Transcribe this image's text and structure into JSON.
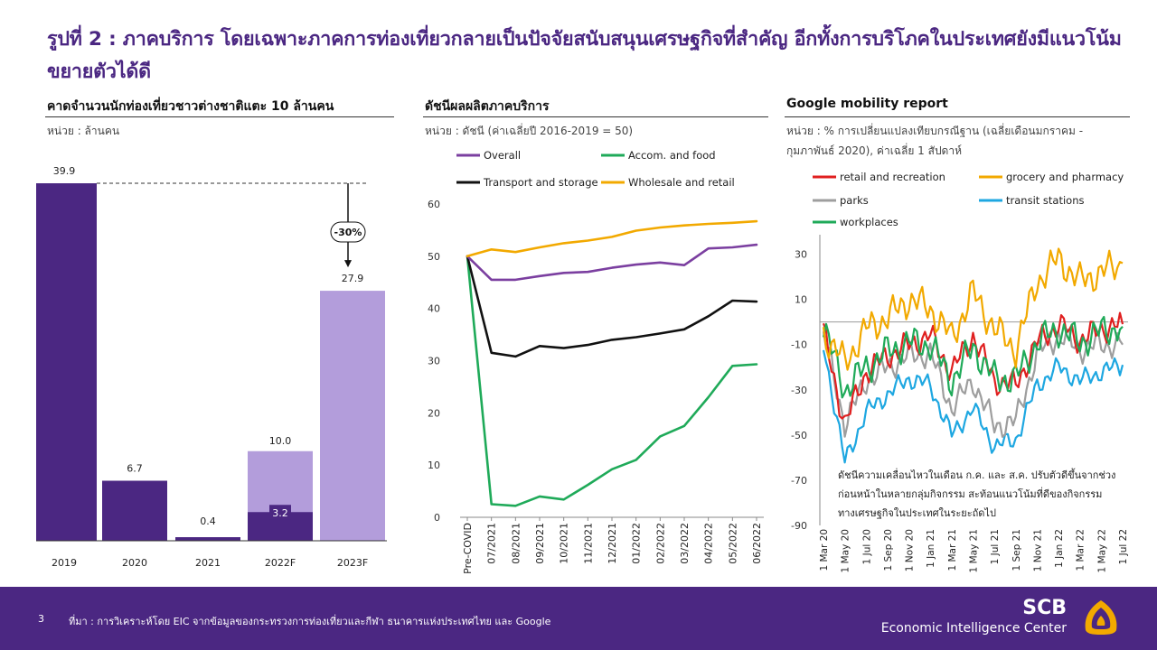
{
  "title": "รูปที่ 2 : ภาคบริการ โดยเฉพาะภาคการท่องเที่ยวกลายเป็นปัจจัยสนับสนุนเศรษฐกิจที่สำคัญ อีกทั้งการบริโภคในประเทศยังมีแนวโน้มขยายตัวได้ดี",
  "panel1": {
    "title": "คาดจำนวนนักท่องเที่ยวชาวต่างชาติแตะ 10 ล้านคน",
    "unit": "หน่วย : ล้านคน",
    "annotation": "-30%"
  },
  "panel2": {
    "title": "ดัชนีผลผลิตภาคบริการ",
    "unit": "หน่วย : ดัชนี (ค่าเฉลี่ยปี 2016-2019 = 50)"
  },
  "panel3": {
    "title": "Google mobility report",
    "unit": "หน่วย : % การเปลี่ยนแปลงเทียบกรณีฐาน (เฉลี่ยเดือนมกราคม - กุมภาพันธ์ 2020), ค่าเฉลี่ย 1 สัปดาห์",
    "note": "ดัชนีความเคลื่อนไหวในเดือน ก.ค. และ ส.ค. ปรับตัวดีขึ้นจากช่วงก่อนหน้าในหลายกลุ่มกิจกรรม สะท้อนแนวโน้มที่ดีของกิจกรรมทางเศรษฐกิจในประเทศในระยะถัดไป"
  },
  "footer": {
    "page": "3",
    "source": "ที่มา : การวิเคราะห์โดย EIC จากข้อมูลของกระทรวงการท่องเที่ยวและกีฬา ธนาคารแห่งประเทศไทย และ Google",
    "brand": "SCB",
    "brand_sub": "Economic Intelligence Center"
  },
  "colors": {
    "brand_purple": "#4b2782",
    "bar_dark": "#4b2782",
    "bar_light": "#b39ddb",
    "overall": "#7b3fa0",
    "accom": "#1faa59",
    "transport": "#111111",
    "wholesale": "#f2a900",
    "retail": "#e02020",
    "grocery": "#f2a900",
    "parks": "#9e9e9e",
    "transit": "#1ea7e1",
    "workplaces": "#1faa59"
  },
  "chart_data": [
    {
      "type": "bar",
      "categories": [
        "2019",
        "2020",
        "2021",
        "2022F",
        "2023F"
      ],
      "series": [
        {
          "values": [
            39.9,
            6.7,
            0.4,
            3.2,
            null
          ]
        },
        {
          "values": [
            null,
            null,
            null,
            10.0,
            27.9
          ]
        }
      ],
      "labels": [
        "39.9",
        "6.7",
        "0.4",
        "10.0",
        "3.2",
        "27.9"
      ],
      "ylim": [
        0,
        39.9
      ]
    },
    {
      "type": "line",
      "x": [
        "Pre-COVID",
        "07/2021",
        "08/2021",
        "09/2021",
        "10/2021",
        "11/2021",
        "12/2021",
        "01/2022",
        "02/2022",
        "03/2022",
        "04/2022",
        "05/2022",
        "06/2022"
      ],
      "yticks": [
        "0",
        "10",
        "20",
        "30",
        "40",
        "50",
        "60"
      ],
      "ylim": [
        0,
        60
      ],
      "series": [
        {
          "name": "Overall",
          "values": [
            50,
            45.5,
            45.5,
            46.2,
            46.8,
            47.0,
            47.8,
            48.4,
            48.8,
            48.3,
            51.5,
            51.7,
            52.2
          ]
        },
        {
          "name": "Accom. and food",
          "values": [
            50,
            2.5,
            2.2,
            4.0,
            3.4,
            6.2,
            9.2,
            11.0,
            15.5,
            17.5,
            23.0,
            29.0,
            29.3
          ]
        },
        {
          "name": "Transport and storage",
          "values": [
            50,
            31.5,
            30.8,
            32.8,
            32.4,
            33.0,
            34.0,
            34.5,
            35.2,
            36.0,
            38.5,
            41.5,
            41.3
          ]
        },
        {
          "name": "Wholesale and retail",
          "values": [
            50,
            51.3,
            50.8,
            51.7,
            52.5,
            53.0,
            53.7,
            54.9,
            55.5,
            55.9,
            56.2,
            56.4,
            56.7
          ]
        }
      ]
    },
    {
      "type": "line",
      "x": [
        "1 Mar 20",
        "1 May 20",
        "1 Jul 20",
        "1 Sep 20",
        "1 Nov 20",
        "1 Jan 21",
        "1 Mar 21",
        "1 May 21",
        "1 Jul 21",
        "1 Sep 21",
        "1 Nov 21",
        "1 Jan 22",
        "1 Mar 22",
        "1 May 22",
        "1 Jul 22"
      ],
      "yticks": [
        "30",
        "10",
        "-10",
        "-30",
        "-50",
        "-70",
        "-90"
      ],
      "ylim": [
        -90,
        37
      ],
      "series": [
        {
          "name": "retail and recreation",
          "values": [
            -5,
            -45,
            -22,
            -15,
            -10,
            -6,
            -22,
            -6,
            -26,
            -28,
            -9,
            -1,
            -8,
            -3,
            -1
          ]
        },
        {
          "name": "grocery and pharmacy",
          "values": [
            -5,
            -18,
            -3,
            2,
            10,
            6,
            -7,
            13,
            -3,
            -12,
            18,
            28,
            18,
            22,
            26
          ]
        },
        {
          "name": "parks",
          "values": [
            -5,
            -45,
            -26,
            -20,
            -15,
            -14,
            -38,
            -26,
            -46,
            -44,
            -14,
            -6,
            -12,
            -10,
            -10
          ]
        },
        {
          "name": "transit stations",
          "values": [
            -10,
            -62,
            -40,
            -32,
            -25,
            -28,
            -50,
            -38,
            -55,
            -52,
            -28,
            -20,
            -26,
            -22,
            -19
          ]
        },
        {
          "name": "workplaces",
          "values": [
            -2,
            -30,
            -20,
            -13,
            -9,
            -10,
            -26,
            -11,
            -25,
            -25,
            -9,
            -3,
            -9,
            -4,
            -2
          ]
        }
      ]
    }
  ]
}
